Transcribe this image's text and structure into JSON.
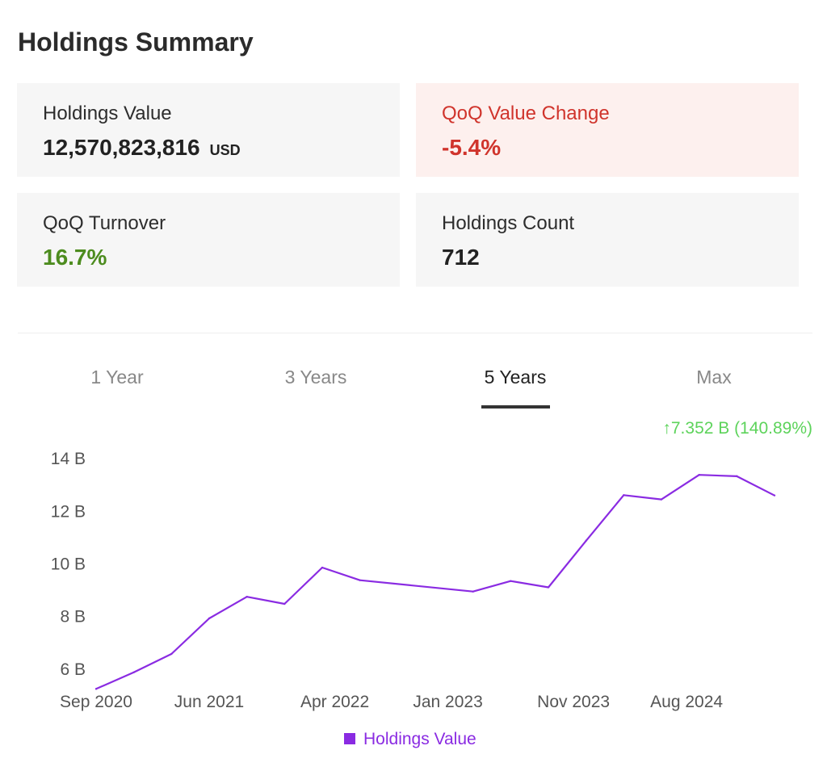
{
  "title": "Holdings Summary",
  "cards": {
    "holdings_value": {
      "label": "Holdings Value",
      "value": "12,570,823,816",
      "unit": "USD"
    },
    "qoq_value_change": {
      "label": "QoQ Value Change",
      "value": "-5.4%"
    },
    "qoq_turnover": {
      "label": "QoQ Turnover",
      "value": "16.7%"
    },
    "holdings_count": {
      "label": "Holdings Count",
      "value": "712"
    }
  },
  "tabs": [
    {
      "label": "1 Year"
    },
    {
      "label": "3 Years"
    },
    {
      "label": "5 Years",
      "active": true
    },
    {
      "label": "Max"
    }
  ],
  "period_change": "↑7.352 B (140.89%)",
  "colors": {
    "line": "#8a2be2",
    "negative": "#d0342c",
    "positive": "#4d8c1f",
    "change": "#5dd35b"
  },
  "chart_data": {
    "type": "line",
    "x": [
      "2020-09",
      "2020-12",
      "2021-03",
      "2021-06",
      "2021-09",
      "2021-12",
      "2022-03",
      "2022-06",
      "2023-03",
      "2023-06",
      "2023-09",
      "2023-12",
      "2024-03",
      "2024-06",
      "2024-09",
      "2024-12",
      "2025-03"
    ],
    "series": [
      {
        "name": "Holdings Value",
        "values": [
          5.22,
          5.85,
          6.55,
          7.9,
          8.72,
          8.45,
          9.83,
          9.35,
          8.92,
          9.32,
          9.08,
          10.85,
          12.58,
          12.42,
          13.35,
          13.3,
          12.57
        ]
      }
    ],
    "x_tick_labels": [
      "Sep 2020",
      "Jun 2021",
      "Apr 2022",
      "Jan 2023",
      "Nov 2023",
      "Aug 2024"
    ],
    "x_tick_dates": [
      "2020-09",
      "2021-06",
      "2022-04",
      "2023-01",
      "2023-11",
      "2024-08"
    ],
    "y_ticks": [
      6,
      8,
      10,
      12,
      14
    ],
    "y_tick_labels": [
      "6 B",
      "8 B",
      "10 B",
      "12 B",
      "14 B"
    ],
    "ylim": [
      5.2,
      14.4
    ],
    "grid": false,
    "legend": "bottom"
  }
}
